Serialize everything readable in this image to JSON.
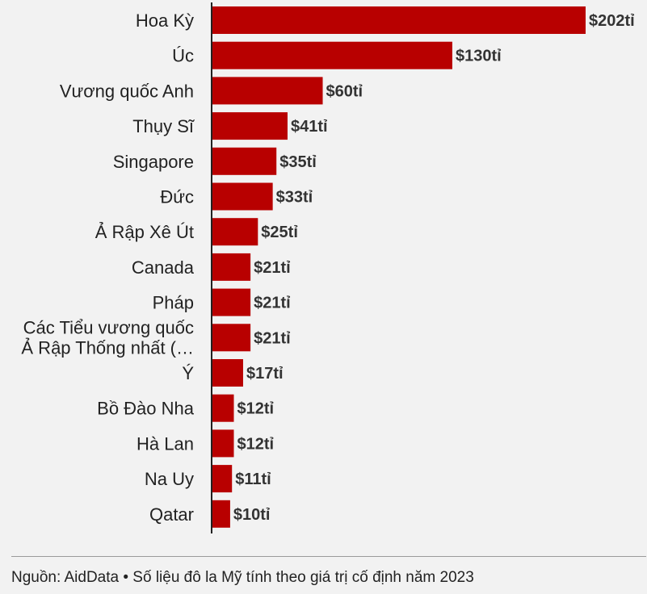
{
  "chart_data": {
    "type": "bar",
    "orientation": "horizontal",
    "title": "",
    "categories": [
      "Hoa Kỳ",
      "Úc",
      "Vương quốc Anh",
      "Thụy Sĩ",
      "Singapore",
      "Đức",
      "Ả Rập Xê Út",
      "Canada",
      "Pháp",
      "Các Tiểu vương quốc Ả Rập Thống nhất (…",
      "Ý",
      "Bồ Đào Nha",
      "Hà Lan",
      "Na Uy",
      "Qatar"
    ],
    "category_lines": [
      [
        "Hoa Kỳ"
      ],
      [
        "Úc"
      ],
      [
        "Vương quốc Anh"
      ],
      [
        "Thụy Sĩ"
      ],
      [
        "Singapore"
      ],
      [
        "Đức"
      ],
      [
        "Ả Rập Xê Út"
      ],
      [
        "Canada"
      ],
      [
        "Pháp"
      ],
      [
        "Các Tiểu vương quốc",
        "Ả Rập Thống nhất (…"
      ],
      [
        "Ý"
      ],
      [
        "Bồ Đào Nha"
      ],
      [
        "Hà Lan"
      ],
      [
        "Na Uy"
      ],
      [
        "Qatar"
      ]
    ],
    "values": [
      202,
      130,
      60,
      41,
      35,
      33,
      25,
      21,
      21,
      21,
      17,
      12,
      12,
      11,
      10
    ],
    "value_labels": [
      "$202tỉ",
      "$130tỉ",
      "$60tỉ",
      "$41tỉ",
      "$35tỉ",
      "$33tỉ",
      "$25tỉ",
      "$21tỉ",
      "$21tỉ",
      "$21tỉ",
      "$17tỉ",
      "$12tỉ",
      "$12tỉ",
      "$11tỉ",
      "$10tỉ"
    ],
    "xlim": [
      0,
      202
    ],
    "grid": false,
    "bar_color": "#b80000"
  },
  "source_text": "Nguồn: AidData • Số liệu đô la Mỹ tính theo giá trị cố định năm 2023"
}
